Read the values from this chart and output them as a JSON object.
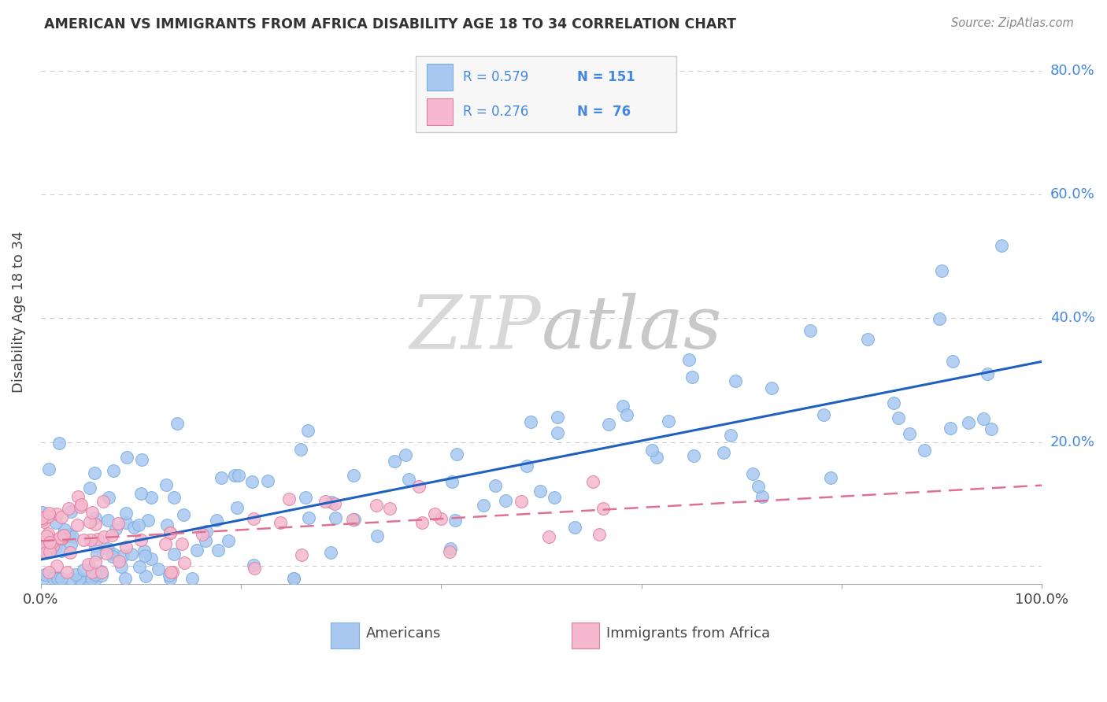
{
  "title": "AMERICAN VS IMMIGRANTS FROM AFRICA DISABILITY AGE 18 TO 34 CORRELATION CHART",
  "source": "Source: ZipAtlas.com",
  "ylabel": "Disability Age 18 to 34",
  "xlim": [
    0,
    1.0
  ],
  "ylim": [
    -0.03,
    0.85
  ],
  "background_color": "#ffffff",
  "grid_color": "#cccccc",
  "watermark_text": "ZIPatlas",
  "legend_r_american": "0.579",
  "legend_n_american": "151",
  "legend_r_africa": "0.276",
  "legend_n_africa": "76",
  "american_color": "#a8c8f0",
  "american_edge_color": "#7aaee0",
  "africa_color": "#f5b8ce",
  "africa_edge_color": "#e080a0",
  "american_line_color": "#2060c0",
  "africa_line_color": "#e07090",
  "ytick_color": "#4488dd",
  "legend_text_color": "#4488dd",
  "title_color": "#333333",
  "source_color": "#888888",
  "am_slope": 0.32,
  "am_intercept": 0.01,
  "af_slope": 0.09,
  "af_intercept": 0.04
}
